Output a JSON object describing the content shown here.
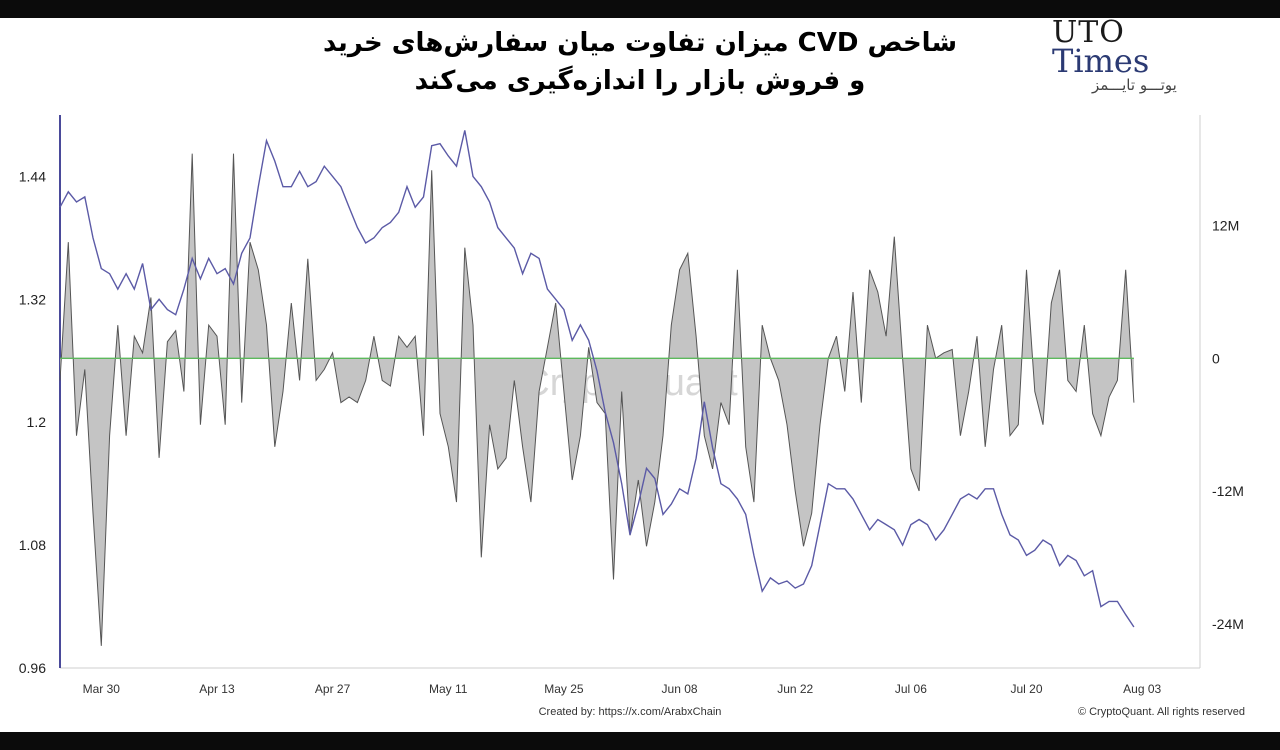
{
  "title_lines": [
    "شاخص CVD میزان تفاوت میان سفارش‌های خرید",
    "و فروش بازار را اندازه‌گیری می‌کند"
  ],
  "logo": {
    "line1": "UTO",
    "line2": "Times",
    "line3": "یوتـــو تایـــمز"
  },
  "watermark": "CryptoQuant",
  "footer": {
    "created_by": "Created by: https://x.com/ArabxChain",
    "copyright": "© CryptoQuant. All rights reserved"
  },
  "colors": {
    "price_line": "#5b5aa6",
    "cvd_fill": "#c4c4c4",
    "cvd_stroke": "#555555",
    "zero_line": "#5cb85c",
    "left_axis": "#4a4a9a"
  },
  "chart_data": {
    "type": "line",
    "x_labels": [
      "Mar 30",
      "Apr 13",
      "Apr 27",
      "May 11",
      "May 25",
      "Jun 08",
      "Jun 22",
      "Jul 06",
      "Jul 20",
      "Aug 03"
    ],
    "x_start": "2025-03-25",
    "x_end": "2025-08-10",
    "y_left": {
      "ticks": [
        "1.44",
        "1.32",
        "1.2",
        "1.08",
        "0.96"
      ],
      "ylim": [
        0.96,
        1.5
      ]
    },
    "y_right": {
      "ticks": [
        "12M",
        "0",
        "-12M",
        "-24M"
      ],
      "ylim": [
        -28,
        22
      ]
    },
    "series": [
      {
        "axis": "left",
        "style": "line",
        "points": [
          [
            "2025-03-25",
            1.41
          ],
          [
            "2025-03-26",
            1.425
          ],
          [
            "2025-03-27",
            1.415
          ],
          [
            "2025-03-28",
            1.42
          ],
          [
            "2025-03-29",
            1.38
          ],
          [
            "2025-03-30",
            1.35
          ],
          [
            "2025-03-31",
            1.345
          ],
          [
            "2025-04-01",
            1.33
          ],
          [
            "2025-04-02",
            1.345
          ],
          [
            "2025-04-03",
            1.33
          ],
          [
            "2025-04-04",
            1.355
          ],
          [
            "2025-04-05",
            1.31
          ],
          [
            "2025-04-06",
            1.32
          ],
          [
            "2025-04-07",
            1.31
          ],
          [
            "2025-04-08",
            1.305
          ],
          [
            "2025-04-09",
            1.33
          ],
          [
            "2025-04-10",
            1.36
          ],
          [
            "2025-04-11",
            1.34
          ],
          [
            "2025-04-12",
            1.36
          ],
          [
            "2025-04-13",
            1.345
          ],
          [
            "2025-04-14",
            1.35
          ],
          [
            "2025-04-15",
            1.335
          ],
          [
            "2025-04-16",
            1.365
          ],
          [
            "2025-04-17",
            1.38
          ],
          [
            "2025-04-18",
            1.43
          ],
          [
            "2025-04-19",
            1.475
          ],
          [
            "2025-04-20",
            1.455
          ],
          [
            "2025-04-21",
            1.43
          ],
          [
            "2025-04-22",
            1.43
          ],
          [
            "2025-04-23",
            1.445
          ],
          [
            "2025-04-24",
            1.43
          ],
          [
            "2025-04-25",
            1.435
          ],
          [
            "2025-04-26",
            1.45
          ],
          [
            "2025-04-27",
            1.44
          ],
          [
            "2025-04-28",
            1.43
          ],
          [
            "2025-04-29",
            1.41
          ],
          [
            "2025-04-30",
            1.39
          ],
          [
            "2025-05-01",
            1.375
          ],
          [
            "2025-05-02",
            1.38
          ],
          [
            "2025-05-03",
            1.39
          ],
          [
            "2025-05-04",
            1.395
          ],
          [
            "2025-05-05",
            1.405
          ],
          [
            "2025-05-06",
            1.43
          ],
          [
            "2025-05-07",
            1.41
          ],
          [
            "2025-05-08",
            1.42
          ],
          [
            "2025-05-09",
            1.47
          ],
          [
            "2025-05-10",
            1.472
          ],
          [
            "2025-05-11",
            1.46
          ],
          [
            "2025-05-12",
            1.45
          ],
          [
            "2025-05-13",
            1.485
          ],
          [
            "2025-05-14",
            1.44
          ],
          [
            "2025-05-15",
            1.43
          ],
          [
            "2025-05-16",
            1.415
          ],
          [
            "2025-05-17",
            1.39
          ],
          [
            "2025-05-18",
            1.38
          ],
          [
            "2025-05-19",
            1.37
          ],
          [
            "2025-05-20",
            1.345
          ],
          [
            "2025-05-21",
            1.365
          ],
          [
            "2025-05-22",
            1.36
          ],
          [
            "2025-05-23",
            1.33
          ],
          [
            "2025-05-24",
            1.32
          ],
          [
            "2025-05-25",
            1.31
          ],
          [
            "2025-05-26",
            1.28
          ],
          [
            "2025-05-27",
            1.295
          ],
          [
            "2025-05-28",
            1.28
          ],
          [
            "2025-05-29",
            1.25
          ],
          [
            "2025-05-30",
            1.21
          ],
          [
            "2025-05-31",
            1.18
          ],
          [
            "2025-06-01",
            1.14
          ],
          [
            "2025-06-02",
            1.09
          ],
          [
            "2025-06-03",
            1.12
          ],
          [
            "2025-06-04",
            1.155
          ],
          [
            "2025-06-05",
            1.145
          ],
          [
            "2025-06-06",
            1.11
          ],
          [
            "2025-06-07",
            1.12
          ],
          [
            "2025-06-08",
            1.135
          ],
          [
            "2025-06-09",
            1.13
          ],
          [
            "2025-06-10",
            1.165
          ],
          [
            "2025-06-11",
            1.22
          ],
          [
            "2025-06-12",
            1.175
          ],
          [
            "2025-06-13",
            1.14
          ],
          [
            "2025-06-14",
            1.135
          ],
          [
            "2025-06-15",
            1.125
          ],
          [
            "2025-06-16",
            1.11
          ],
          [
            "2025-06-17",
            1.07
          ],
          [
            "2025-06-18",
            1.035
          ],
          [
            "2025-06-19",
            1.048
          ],
          [
            "2025-06-20",
            1.042
          ],
          [
            "2025-06-21",
            1.045
          ],
          [
            "2025-06-22",
            1.038
          ],
          [
            "2025-06-23",
            1.042
          ],
          [
            "2025-06-24",
            1.06
          ],
          [
            "2025-06-25",
            1.1
          ],
          [
            "2025-06-26",
            1.14
          ],
          [
            "2025-06-27",
            1.135
          ],
          [
            "2025-06-28",
            1.135
          ],
          [
            "2025-06-29",
            1.125
          ],
          [
            "2025-06-30",
            1.11
          ],
          [
            "2025-07-01",
            1.095
          ],
          [
            "2025-07-02",
            1.105
          ],
          [
            "2025-07-03",
            1.1
          ],
          [
            "2025-07-04",
            1.095
          ],
          [
            "2025-07-05",
            1.08
          ],
          [
            "2025-07-06",
            1.1
          ],
          [
            "2025-07-07",
            1.105
          ],
          [
            "2025-07-08",
            1.1
          ],
          [
            "2025-07-09",
            1.085
          ],
          [
            "2025-07-10",
            1.095
          ],
          [
            "2025-07-11",
            1.11
          ],
          [
            "2025-07-12",
            1.125
          ],
          [
            "2025-07-13",
            1.13
          ],
          [
            "2025-07-14",
            1.125
          ],
          [
            "2025-07-15",
            1.135
          ],
          [
            "2025-07-16",
            1.135
          ],
          [
            "2025-07-17",
            1.11
          ],
          [
            "2025-07-18",
            1.09
          ],
          [
            "2025-07-19",
            1.085
          ],
          [
            "2025-07-20",
            1.07
          ],
          [
            "2025-07-21",
            1.075
          ],
          [
            "2025-07-22",
            1.085
          ],
          [
            "2025-07-23",
            1.08
          ],
          [
            "2025-07-24",
            1.06
          ],
          [
            "2025-07-25",
            1.07
          ],
          [
            "2025-07-26",
            1.065
          ],
          [
            "2025-07-27",
            1.05
          ],
          [
            "2025-07-28",
            1.055
          ],
          [
            "2025-07-29",
            1.02
          ],
          [
            "2025-07-30",
            1.025
          ],
          [
            "2025-07-31",
            1.025
          ],
          [
            "2025-08-01",
            1.012
          ],
          [
            "2025-08-02",
            1.0
          ]
        ]
      },
      {
        "axis": "right",
        "style": "filled_area",
        "points": [
          [
            "2025-03-25",
            -2
          ],
          [
            "2025-03-26",
            10.5
          ],
          [
            "2025-03-27",
            -7
          ],
          [
            "2025-03-28",
            -1
          ],
          [
            "2025-03-29",
            -14
          ],
          [
            "2025-03-30",
            -26
          ],
          [
            "2025-03-31",
            -7
          ],
          [
            "2025-04-01",
            3
          ],
          [
            "2025-04-02",
            -7
          ],
          [
            "2025-04-03",
            2
          ],
          [
            "2025-04-04",
            0.5
          ],
          [
            "2025-04-05",
            5.5
          ],
          [
            "2025-04-06",
            -9
          ],
          [
            "2025-04-07",
            1.5
          ],
          [
            "2025-04-08",
            2.5
          ],
          [
            "2025-04-09",
            -3
          ],
          [
            "2025-04-10",
            18.5
          ],
          [
            "2025-04-11",
            -6
          ],
          [
            "2025-04-12",
            3
          ],
          [
            "2025-04-13",
            2
          ],
          [
            "2025-04-14",
            -6
          ],
          [
            "2025-04-15",
            18.5
          ],
          [
            "2025-04-16",
            -4
          ],
          [
            "2025-04-17",
            10.5
          ],
          [
            "2025-04-18",
            8
          ],
          [
            "2025-04-19",
            3
          ],
          [
            "2025-04-20",
            -8
          ],
          [
            "2025-04-21",
            -3
          ],
          [
            "2025-04-22",
            5
          ],
          [
            "2025-04-23",
            -2
          ],
          [
            "2025-04-24",
            9
          ],
          [
            "2025-04-25",
            -2
          ],
          [
            "2025-04-26",
            -1
          ],
          [
            "2025-04-27",
            0.5
          ],
          [
            "2025-04-28",
            -4
          ],
          [
            "2025-04-29",
            -3.5
          ],
          [
            "2025-04-30",
            -4
          ],
          [
            "2025-05-01",
            -2
          ],
          [
            "2025-05-02",
            2
          ],
          [
            "2025-05-03",
            -2
          ],
          [
            "2025-05-04",
            -2.5
          ],
          [
            "2025-05-05",
            2
          ],
          [
            "2025-05-06",
            1
          ],
          [
            "2025-05-07",
            2
          ],
          [
            "2025-05-08",
            -7
          ],
          [
            "2025-05-09",
            17
          ],
          [
            "2025-05-10",
            -5
          ],
          [
            "2025-05-11",
            -8
          ],
          [
            "2025-05-12",
            -13
          ],
          [
            "2025-05-13",
            10
          ],
          [
            "2025-05-14",
            3
          ],
          [
            "2025-05-15",
            -18
          ],
          [
            "2025-05-16",
            -6
          ],
          [
            "2025-05-17",
            -10
          ],
          [
            "2025-05-18",
            -9
          ],
          [
            "2025-05-19",
            -2
          ],
          [
            "2025-05-20",
            -8
          ],
          [
            "2025-05-21",
            -13
          ],
          [
            "2025-05-22",
            -3
          ],
          [
            "2025-05-23",
            1
          ],
          [
            "2025-05-24",
            5
          ],
          [
            "2025-05-25",
            -3
          ],
          [
            "2025-05-26",
            -11
          ],
          [
            "2025-05-27",
            -7
          ],
          [
            "2025-05-28",
            1
          ],
          [
            "2025-05-29",
            -4
          ],
          [
            "2025-05-30",
            -5
          ],
          [
            "2025-05-31",
            -20
          ],
          [
            "2025-06-01",
            -3
          ],
          [
            "2025-06-02",
            -16
          ],
          [
            "2025-06-03",
            -11
          ],
          [
            "2025-06-04",
            -17
          ],
          [
            "2025-06-05",
            -13
          ],
          [
            "2025-06-06",
            -7
          ],
          [
            "2025-06-07",
            3
          ],
          [
            "2025-06-08",
            8
          ],
          [
            "2025-06-09",
            9.5
          ],
          [
            "2025-06-10",
            2
          ],
          [
            "2025-06-11",
            -7
          ],
          [
            "2025-06-12",
            -10
          ],
          [
            "2025-06-13",
            -4
          ],
          [
            "2025-06-14",
            -6
          ],
          [
            "2025-06-15",
            8
          ],
          [
            "2025-06-16",
            -8
          ],
          [
            "2025-06-17",
            -13
          ],
          [
            "2025-06-18",
            3
          ],
          [
            "2025-06-19",
            0
          ],
          [
            "2025-06-20",
            -2
          ],
          [
            "2025-06-21",
            -6
          ],
          [
            "2025-06-22",
            -12
          ],
          [
            "2025-06-23",
            -17
          ],
          [
            "2025-06-24",
            -14
          ],
          [
            "2025-06-25",
            -6
          ],
          [
            "2025-06-26",
            0
          ],
          [
            "2025-06-27",
            2
          ],
          [
            "2025-06-28",
            -3
          ],
          [
            "2025-06-29",
            6
          ],
          [
            "2025-06-30",
            -4
          ],
          [
            "2025-07-01",
            8
          ],
          [
            "2025-07-02",
            6
          ],
          [
            "2025-07-03",
            2
          ],
          [
            "2025-07-04",
            11
          ],
          [
            "2025-07-05",
            0
          ],
          [
            "2025-07-06",
            -10
          ],
          [
            "2025-07-07",
            -12
          ],
          [
            "2025-07-08",
            3
          ],
          [
            "2025-07-09",
            0
          ],
          [
            "2025-07-10",
            0.5
          ],
          [
            "2025-07-11",
            0.8
          ],
          [
            "2025-07-12",
            -7
          ],
          [
            "2025-07-13",
            -3
          ],
          [
            "2025-07-14",
            2
          ],
          [
            "2025-07-15",
            -8
          ],
          [
            "2025-07-16",
            -1
          ],
          [
            "2025-07-17",
            3
          ],
          [
            "2025-07-18",
            -7
          ],
          [
            "2025-07-19",
            -6
          ],
          [
            "2025-07-20",
            8
          ],
          [
            "2025-07-21",
            -3
          ],
          [
            "2025-07-22",
            -6
          ],
          [
            "2025-07-23",
            5
          ],
          [
            "2025-07-24",
            8
          ],
          [
            "2025-07-25",
            -2
          ],
          [
            "2025-07-26",
            -3
          ],
          [
            "2025-07-27",
            3
          ],
          [
            "2025-07-28",
            -5
          ],
          [
            "2025-07-29",
            -7
          ],
          [
            "2025-07-30",
            -3.5
          ],
          [
            "2025-07-31",
            -2
          ],
          [
            "2025-08-01",
            8
          ],
          [
            "2025-08-02",
            -4
          ]
        ]
      },
      {
        "axis": "right",
        "style": "baseline",
        "points": [
          [
            "2025-03-25",
            0
          ],
          [
            "2025-08-02",
            0
          ]
        ]
      }
    ]
  }
}
